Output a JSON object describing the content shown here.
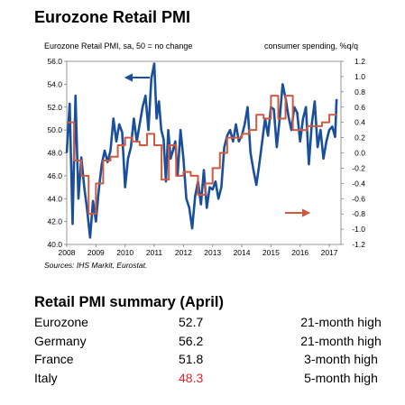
{
  "title": "Eurozone Retail PMI",
  "chart_subtitle_left": "Eurozone Retail PMI, sa, 50 = no change",
  "chart_subtitle_right": "consumer spending, %q/q",
  "source": "Sources: IHS Markit, Eurostat.",
  "colors": {
    "pmi": "#1a4f9c",
    "spending": "#d05a3f",
    "highlight": "#e8212b"
  },
  "chart_data": {
    "type": "line",
    "xlim": [
      2008,
      2017.4
    ],
    "x_ticks": [
      "2008",
      "2009",
      "2010",
      "2011",
      "2012",
      "2013",
      "2014",
      "2015",
      "2016",
      "2017"
    ],
    "y_left": {
      "label": "Eurozone Retail PMI, sa, 50 = no change",
      "lim": [
        40,
        56
      ],
      "ticks": [
        "40.0",
        "42.0",
        "44.0",
        "46.0",
        "48.0",
        "50.0",
        "52.0",
        "54.0",
        "56.0"
      ]
    },
    "y_right": {
      "label": "consumer spending, %q/q",
      "lim": [
        -1.2,
        1.2
      ],
      "ticks": [
        "-1.2",
        "-1.0",
        "-0.8",
        "-0.6",
        "-0.4",
        "-0.2",
        "0.0",
        "0.2",
        "0.4",
        "0.6",
        "0.8",
        "1.0",
        "1.2"
      ]
    },
    "series": [
      {
        "axis": "left",
        "x": [
          2008.0,
          2008.1,
          2008.2,
          2008.3,
          2008.4,
          2008.5,
          2008.6,
          2008.7,
          2008.8,
          2008.9,
          2009.0,
          2009.1,
          2009.2,
          2009.3,
          2009.4,
          2009.5,
          2009.6,
          2009.7,
          2009.8,
          2009.9,
          2010.0,
          2010.1,
          2010.2,
          2010.3,
          2010.4,
          2010.5,
          2010.6,
          2010.7,
          2010.8,
          2010.9,
          2011.0,
          2011.08,
          2011.16,
          2011.24,
          2011.32,
          2011.4,
          2011.48,
          2011.56,
          2011.64,
          2011.72,
          2011.8,
          2011.9,
          2012.0,
          2012.1,
          2012.2,
          2012.3,
          2012.4,
          2012.5,
          2012.6,
          2012.7,
          2012.8,
          2012.9,
          2013.0,
          2013.1,
          2013.2,
          2013.3,
          2013.4,
          2013.5,
          2013.6,
          2013.7,
          2013.8,
          2013.9,
          2014.0,
          2014.1,
          2014.2,
          2014.3,
          2014.4,
          2014.5,
          2014.6,
          2014.7,
          2014.8,
          2014.9,
          2015.0,
          2015.1,
          2015.2,
          2015.3,
          2015.4,
          2015.5,
          2015.6,
          2015.7,
          2015.8,
          2015.9,
          2016.0,
          2016.1,
          2016.2,
          2016.3,
          2016.4,
          2016.5,
          2016.6,
          2016.7,
          2016.8,
          2016.9,
          2017.0,
          2017.1,
          2017.2,
          2017.25
        ],
        "values": [
          48.0,
          52.3,
          41.8,
          53.0,
          44.0,
          47.6,
          45.0,
          43.0,
          40.6,
          43.8,
          42.0,
          44.8,
          47.0,
          48.2,
          47.2,
          48.2,
          51.0,
          49.0,
          50.5,
          49.8,
          45.0,
          47.5,
          48.5,
          51.0,
          49.0,
          50.5,
          52.0,
          53.0,
          50.0,
          54.5,
          55.8,
          51.0,
          52.5,
          50.0,
          49.2,
          45.5,
          50.0,
          47.5,
          48.2,
          49.0,
          46.0,
          50.0,
          47.5,
          44.0,
          43.2,
          41.4,
          44.2,
          45.5,
          43.5,
          46.5,
          43.2,
          45.0,
          44.8,
          45.5,
          44.0,
          45.0,
          48.5,
          49.5,
          50.0,
          49.0,
          50.5,
          49.0,
          49.5,
          50.5,
          52.0,
          48.0,
          46.5,
          45.2,
          47.0,
          49.0,
          51.0,
          49.5,
          52.0,
          51.8,
          48.5,
          51.0,
          54.0,
          52.8,
          51.2,
          50.0,
          52.0,
          51.5,
          49.0,
          51.0,
          52.0,
          47.0,
          50.5,
          52.5,
          48.5,
          50.0,
          47.5,
          49.0,
          50.0,
          50.3,
          49.4,
          52.7
        ],
        "legend_arrow": "left"
      },
      {
        "axis": "right",
        "x": [
          2008.0,
          2008.25,
          2008.5,
          2008.75,
          2009.0,
          2009.25,
          2009.5,
          2009.75,
          2010.0,
          2010.25,
          2010.5,
          2010.75,
          2011.0,
          2011.25,
          2011.5,
          2011.75,
          2012.0,
          2012.25,
          2012.5,
          2012.75,
          2013.0,
          2013.25,
          2013.5,
          2013.75,
          2014.0,
          2014.25,
          2014.5,
          2014.75,
          2015.0,
          2015.25,
          2015.5,
          2015.75,
          2016.0,
          2016.25,
          2016.5,
          2016.75,
          2017.0
        ],
        "values": [
          0.4,
          -0.1,
          -0.3,
          -0.8,
          -0.4,
          -0.1,
          -0.05,
          0.1,
          0.2,
          0.15,
          0.1,
          0.25,
          0.1,
          -0.35,
          0.1,
          -0.3,
          -0.25,
          -0.3,
          -0.55,
          -0.4,
          -0.2,
          0.0,
          0.2,
          0.2,
          0.25,
          0.3,
          0.5,
          0.45,
          0.75,
          0.45,
          0.75,
          0.3,
          0.3,
          0.35,
          0.35,
          0.4,
          0.5
        ],
        "legend_arrow": "right"
      }
    ]
  },
  "summary": {
    "title": "Retail PMI summary (April)",
    "rows": [
      {
        "name": "Eurozone",
        "value": "52.7",
        "note": "21-month high",
        "highlight": false
      },
      {
        "name": "Germany",
        "value": "56.2",
        "note": "21-month high",
        "highlight": false
      },
      {
        "name": "France",
        "value": "51.8",
        "note": "3-month high",
        "highlight": false
      },
      {
        "name": "Italy",
        "value": "48.3",
        "note": "5-month high",
        "highlight": true
      }
    ]
  }
}
